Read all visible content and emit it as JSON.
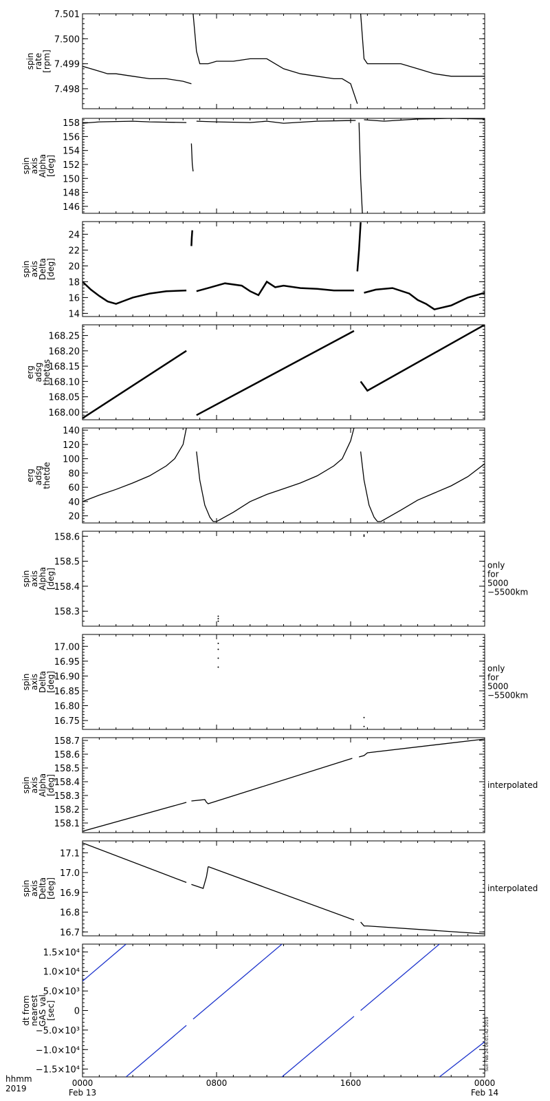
{
  "chart_data": [
    {
      "type": "scatter",
      "ylabel": [
        "spin",
        "rate",
        "[rpm]"
      ],
      "ylim": [
        7.4972,
        7.501
      ],
      "yticks": [
        7.498,
        7.499,
        7.5,
        7.501
      ],
      "ticklabels": [
        "7.498",
        "7.499",
        "7.500",
        "7.501"
      ],
      "series": [
        {
          "x": [
            0,
            0.5,
            1,
            1.5,
            2,
            3,
            4,
            5,
            6,
            6.5
          ],
          "y": [
            7.4989,
            7.4988,
            7.4987,
            7.4986,
            7.4986,
            7.4985,
            7.4984,
            7.4984,
            7.4983,
            7.4982
          ]
        },
        {
          "x": [
            6.6,
            6.8,
            7,
            7.5,
            8,
            9,
            10,
            11,
            12,
            13,
            14,
            15,
            15.5,
            16,
            16.4
          ],
          "y": [
            7.501,
            7.4995,
            7.499,
            7.499,
            7.4991,
            7.4991,
            7.4992,
            7.4992,
            7.4988,
            7.4986,
            7.4985,
            7.4984,
            7.4984,
            7.4982,
            7.4974
          ]
        },
        {
          "x": [
            16.6,
            16.8,
            17,
            18,
            19,
            20,
            21,
            22,
            23,
            24
          ],
          "y": [
            7.501,
            7.4992,
            7.499,
            7.499,
            7.499,
            7.4988,
            7.4986,
            7.4985,
            7.4985,
            7.4985
          ]
        }
      ]
    },
    {
      "type": "line",
      "ylabel": [
        "spin",
        "axis",
        "Alpha",
        "[deg]"
      ],
      "ylim": [
        145,
        158.6
      ],
      "yticks": [
        146,
        148,
        150,
        152,
        154,
        156,
        158
      ],
      "ticklabels": [
        "146",
        "148",
        "150",
        "152",
        "154",
        "156",
        "158"
      ],
      "series": [
        {
          "x": [
            0,
            1,
            3,
            4,
            6.2
          ],
          "y": [
            157.9,
            158.1,
            158.2,
            158.1,
            158.0
          ]
        },
        {
          "x": [
            6.5,
            6.55,
            6.6
          ],
          "y": [
            155,
            152,
            151
          ]
        },
        {
          "x": [
            6.8,
            8,
            10,
            11,
            12,
            14,
            16.3
          ],
          "y": [
            158.2,
            158.1,
            158.0,
            158.2,
            157.9,
            158.2,
            158.3
          ]
        },
        {
          "x": [
            16.5,
            16.6,
            16.7
          ],
          "y": [
            158,
            150,
            145
          ]
        },
        {
          "x": [
            16.8,
            18,
            20,
            22,
            24
          ],
          "y": [
            158.4,
            158.2,
            158.5,
            158.6,
            158.5
          ]
        }
      ]
    },
    {
      "type": "line",
      "ylabel": [
        "spin",
        "axis",
        "Delta",
        "[deg]"
      ],
      "ylim": [
        13.6,
        25.6
      ],
      "yticks": [
        14,
        16,
        18,
        20,
        22,
        24
      ],
      "ticklabels": [
        "14",
        "16",
        "18",
        "20",
        "22",
        "24"
      ],
      "series": [
        {
          "x": [
            0,
            0.5,
            1,
            1.5,
            2,
            2.5,
            3,
            4,
            5,
            6.2
          ],
          "y": [
            18.0,
            17.0,
            16.2,
            15.5,
            15.2,
            15.6,
            16.0,
            16.5,
            16.8,
            16.9
          ]
        },
        {
          "x": [
            6.5,
            6.52,
            6.55
          ],
          "y": [
            22.5,
            23.5,
            24.5
          ]
        },
        {
          "x": [
            6.8,
            7.5,
            8.5,
            9.5,
            10,
            10.5,
            11,
            11.5,
            12,
            13,
            14,
            15,
            16.2
          ],
          "y": [
            16.8,
            17.2,
            17.8,
            17.5,
            16.8,
            16.3,
            18.0,
            17.3,
            17.5,
            17.2,
            17.1,
            16.9,
            16.9
          ]
        },
        {
          "x": [
            16.4,
            16.5,
            16.6
          ],
          "y": [
            19.3,
            22,
            25.5
          ]
        },
        {
          "x": [
            16.8,
            17.5,
            18.5,
            19.5,
            20,
            20.5,
            21,
            22,
            23,
            24
          ],
          "y": [
            16.6,
            17.0,
            17.2,
            16.5,
            15.7,
            15.2,
            14.5,
            15.0,
            16.0,
            16.6
          ]
        }
      ]
    },
    {
      "type": "line",
      "ylabel": [
        "erg",
        "adsg",
        "thetas"
      ],
      "ylim": [
        167.975,
        168.285
      ],
      "yticks": [
        168.0,
        168.05,
        168.1,
        168.15,
        168.2,
        168.25
      ],
      "ticklabels": [
        "168.00",
        "168.05",
        "168.10",
        "168.15",
        "168.20",
        "168.25"
      ],
      "series": [
        {
          "x": [
            0,
            6.2
          ],
          "y": [
            167.98,
            168.2
          ]
        },
        {
          "x": [
            6.8,
            16.2
          ],
          "y": [
            167.99,
            168.265
          ]
        },
        {
          "x": [
            16.6,
            17.0,
            24
          ],
          "y": [
            168.1,
            168.07,
            168.285
          ]
        }
      ]
    },
    {
      "type": "line",
      "ylabel": [
        "erg",
        "adsg",
        "thetde"
      ],
      "ylim": [
        10,
        143
      ],
      "yticks": [
        20,
        40,
        60,
        80,
        100,
        120,
        140
      ],
      "ticklabels": [
        "20",
        "40",
        "60",
        "80",
        "100",
        "120",
        "140"
      ],
      "series": [
        {
          "x": [
            0,
            1,
            2,
            3,
            4,
            5,
            5.5,
            6,
            6.2
          ],
          "y": [
            40,
            49,
            57,
            66,
            76,
            90,
            100,
            120,
            143
          ]
        },
        {
          "x": [
            6.8,
            7.0,
            7.3,
            7.6,
            7.8,
            8.0
          ],
          "y": [
            110,
            70,
            35,
            18,
            12,
            12
          ]
        },
        {
          "x": [
            8.0,
            9,
            10,
            11,
            12,
            13,
            14,
            15,
            15.5,
            16,
            16.2
          ],
          "y": [
            12,
            25,
            40,
            50,
            58,
            66,
            76,
            90,
            100,
            125,
            143
          ]
        },
        {
          "x": [
            16.6,
            16.8,
            17.1,
            17.4,
            17.6,
            17.8
          ],
          "y": [
            110,
            70,
            35,
            18,
            12,
            12
          ]
        },
        {
          "x": [
            17.8,
            19,
            20,
            21,
            22,
            23,
            24
          ],
          "y": [
            12,
            28,
            42,
            52,
            62,
            75,
            93
          ]
        }
      ]
    },
    {
      "type": "scatter",
      "ylabel": [
        "spin",
        "axis",
        "Alpha",
        "[deg]"
      ],
      "ylim": [
        158.24,
        158.62
      ],
      "yticks": [
        158.3,
        158.4,
        158.5,
        158.6
      ],
      "ticklabels": [
        "158.3",
        "158.4",
        "158.5",
        "158.6"
      ],
      "side_note": [
        "only",
        "for",
        "5000",
        "−5500km"
      ],
      "series": [
        {
          "x": [
            8.1,
            8.1,
            8.1
          ],
          "y": [
            158.26,
            158.27,
            158.28
          ]
        },
        {
          "x": [
            16.8,
            16.8
          ],
          "y": [
            158.6,
            158.605
          ]
        }
      ]
    },
    {
      "type": "scatter",
      "ylabel": [
        "spin",
        "axis",
        "Delta",
        "[deg]"
      ],
      "ylim": [
        16.72,
        17.04
      ],
      "yticks": [
        16.75,
        16.8,
        16.85,
        16.9,
        16.95,
        17.0
      ],
      "ticklabels": [
        "16.75",
        "16.80",
        "16.85",
        "16.90",
        "16.95",
        "17.00"
      ],
      "side_note": [
        "only",
        "for",
        "5000",
        "−5500km"
      ],
      "series": [
        {
          "x": [
            8.1,
            8.1,
            8.1,
            8.1
          ],
          "y": [
            16.93,
            16.96,
            16.99,
            17.01
          ]
        },
        {
          "x": [
            16.8,
            16.8
          ],
          "y": [
            16.73,
            16.76
          ]
        }
      ]
    },
    {
      "type": "line",
      "ylabel": [
        "spin",
        "axis",
        "Alpha",
        "[deg]"
      ],
      "ylim": [
        158.03,
        158.72
      ],
      "yticks": [
        158.1,
        158.2,
        158.3,
        158.4,
        158.5,
        158.6,
        158.7
      ],
      "ticklabels": [
        "158.1",
        "158.2",
        "158.3",
        "158.4",
        "158.5",
        "158.6",
        "158.7"
      ],
      "side_note": [
        "interpolated"
      ],
      "series": [
        {
          "x": [
            0,
            6.2
          ],
          "y": [
            158.04,
            158.25
          ]
        },
        {
          "x": [
            6.5,
            7.3,
            7.4,
            7.5,
            16.1
          ],
          "y": [
            158.26,
            158.27,
            158.25,
            158.24,
            158.57
          ]
        },
        {
          "x": [
            16.5,
            16.8,
            17.0,
            24
          ],
          "y": [
            158.58,
            158.59,
            158.61,
            158.71
          ]
        }
      ]
    },
    {
      "type": "line",
      "ylabel": [
        "spin",
        "axis",
        "Delta",
        "[deg]"
      ],
      "ylim": [
        16.68,
        17.16
      ],
      "yticks": [
        16.7,
        16.8,
        16.9,
        17.0,
        17.1
      ],
      "ticklabels": [
        "16.7",
        "16.8",
        "16.9",
        "17.0",
        "17.1"
      ],
      "side_note": [
        "interpolated"
      ],
      "series": [
        {
          "x": [
            0,
            6.2
          ],
          "y": [
            17.15,
            16.95
          ]
        },
        {
          "x": [
            6.5,
            7.2,
            7.4,
            7.5
          ],
          "y": [
            16.94,
            16.92,
            16.98,
            17.03
          ]
        },
        {
          "x": [
            7.5,
            16.2
          ],
          "y": [
            17.03,
            16.76
          ]
        },
        {
          "x": [
            16.6,
            16.8,
            17.0,
            24
          ],
          "y": [
            16.75,
            16.73,
            16.73,
            16.69
          ]
        }
      ]
    },
    {
      "type": "line",
      "ylabel": [
        "dt from",
        "nearest",
        "GAS val",
        "[sec]"
      ],
      "ylim": [
        -17000,
        17000
      ],
      "yticks": [
        -15000,
        -10000,
        -5000,
        0,
        5000,
        10000,
        15000
      ],
      "ticklabels": [
        "−1.5×10⁴",
        "−1.0×10⁴",
        "−5.0×10³",
        "0",
        "5.0×10³",
        "1.0×10⁴",
        "1.5×10⁴"
      ],
      "timestamp": "Sun Feb 24 06:01:42 2019",
      "series_color": "#1c33cc",
      "series": [
        {
          "x": [
            0,
            2.6
          ],
          "y": [
            7500,
            17000
          ]
        },
        {
          "x": [
            2.6,
            6.2
          ],
          "y": [
            -17000,
            -3800
          ]
        },
        {
          "x": [
            6.6,
            11.9
          ],
          "y": [
            -2200,
            17000
          ]
        },
        {
          "x": [
            11.9,
            16.2
          ],
          "y": [
            -17000,
            -1500
          ]
        },
        {
          "x": [
            16.6,
            21.3
          ],
          "y": [
            0,
            17000
          ]
        },
        {
          "x": [
            21.3,
            24
          ],
          "y": [
            -17000,
            -8000
          ]
        }
      ]
    }
  ],
  "x_axis": {
    "range": [
      0,
      24
    ],
    "tick_positions": [
      0,
      8,
      16,
      24
    ],
    "tick_labels": [
      "0000",
      "0800",
      "1600",
      "0000"
    ],
    "date_labels": [
      "Feb 13",
      "",
      "",
      "Feb 14"
    ],
    "row_header_1": "hhmm",
    "row_header_2": "2019"
  }
}
